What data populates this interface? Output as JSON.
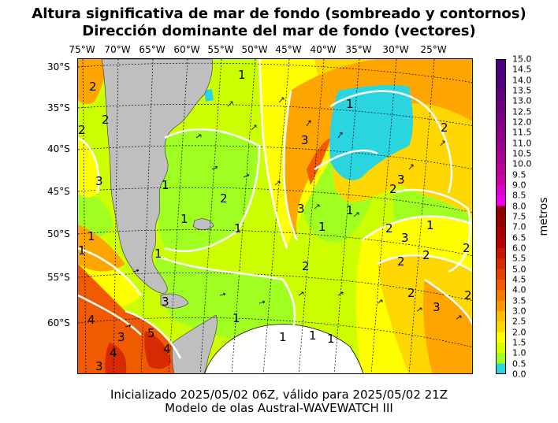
{
  "title_line1": "Altura significativa de mar de fondo (sombreado y contornos)",
  "title_line2": "Dirección dominante del mar de fondo (vectores)",
  "lon_labels": [
    "75°W",
    "70°W",
    "65°W",
    "60°W",
    "55°W",
    "50°W",
    "45°W",
    "40°W",
    "35°W",
    "30°W",
    "25°W"
  ],
  "lat_labels": [
    "30°S",
    "35°S",
    "40°S",
    "45°S",
    "50°S",
    "55°S",
    "60°S"
  ],
  "colorbar": {
    "title": "metros",
    "ticks": [
      "15.0",
      "14.5",
      "14.0",
      "13.5",
      "13.0",
      "12.5",
      "12.0",
      "11.5",
      "11.0",
      "10.5",
      "10.0",
      "9.5",
      "9.0",
      "8.5",
      "8.0",
      "7.5",
      "7.0",
      "6.5",
      "6.0",
      "5.5",
      "5.0",
      "4.5",
      "4.0",
      "3.5",
      "3.0",
      "2.5",
      "2.0",
      "1.5",
      "1.0",
      "0.5",
      "0.0"
    ],
    "colors": [
      "#4b0082",
      "#4b0082",
      "#55007f",
      "#62007f",
      "#6e0080",
      "#7a0085",
      "#86008c",
      "#920090",
      "#9e0094",
      "#ad0098",
      "#bb009c",
      "#cc00a8",
      "#dd00d0",
      "#ee00ee",
      "#8b0000",
      "#990000",
      "#a80000",
      "#b80000",
      "#c71500",
      "#d62a00",
      "#e64000",
      "#f05a00",
      "#f87800",
      "#ff9600",
      "#ffbf00",
      "#ffd700",
      "#ffff00",
      "#d7ff00",
      "#a0ff20",
      "#2ad5e0"
    ]
  },
  "contour_labels": [
    "1",
    "1",
    "1",
    "1",
    "1",
    "1",
    "1",
    "1",
    "1",
    "1",
    "1",
    "1",
    "1",
    "1",
    "1",
    "2",
    "2",
    "2",
    "2",
    "2",
    "2",
    "2",
    "2",
    "2",
    "2",
    "2",
    "2",
    "2",
    "3",
    "3",
    "3",
    "3",
    "3",
    "3",
    "3",
    "3",
    "3",
    "4",
    "4",
    "4",
    "5"
  ],
  "footer_line1": "Inicializado 2025/05/02 06Z, válido para 2025/05/02 21Z",
  "footer_line2": "Modelo de olas Austral-WAVEWATCH III"
}
